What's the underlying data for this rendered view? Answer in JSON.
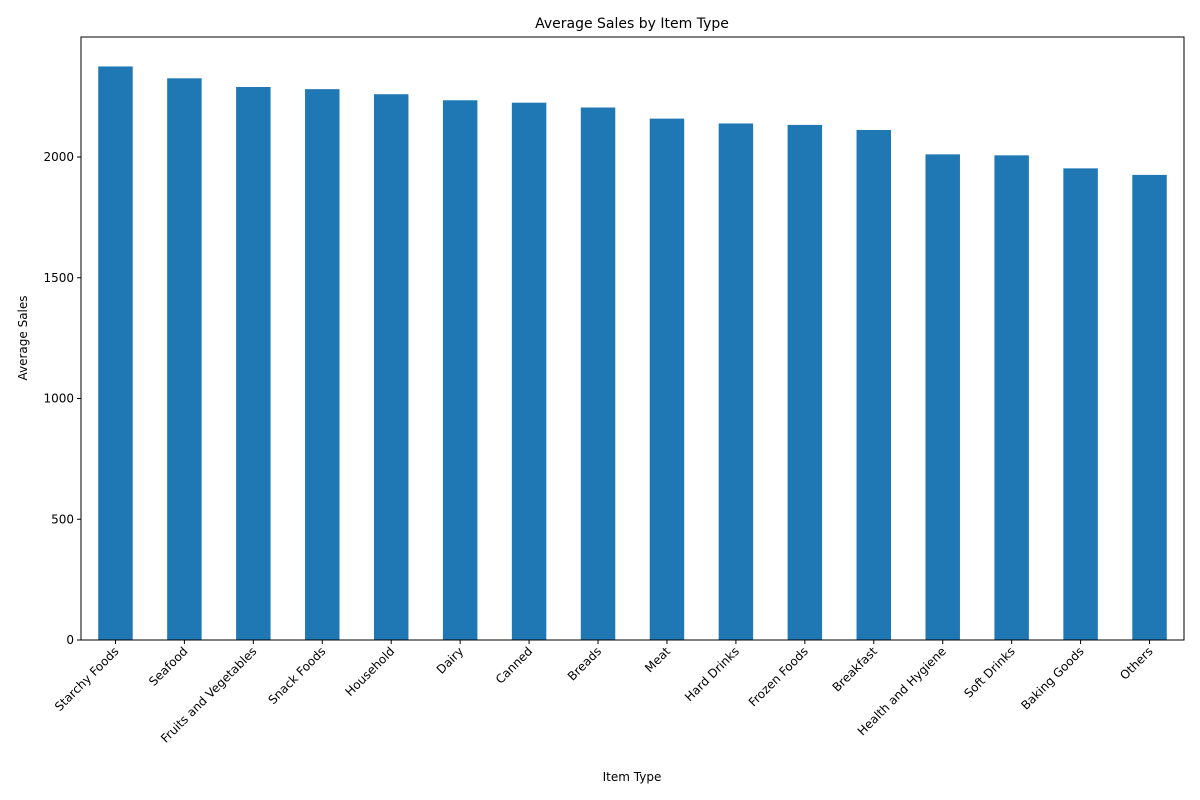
{
  "chart_data": {
    "type": "bar",
    "title": "Average Sales by Item Type",
    "xlabel": "Item Type",
    "ylabel": "Average Sales",
    "categories": [
      "Starchy Foods",
      "Seafood",
      "Fruits and Vegetables",
      "Snack Foods",
      "Household",
      "Dairy",
      "Canned",
      "Breads",
      "Meat",
      "Hard Drinks",
      "Frozen Foods",
      "Breakfast",
      "Health and Hygiene",
      "Soft Drinks",
      "Baking Goods",
      "Others"
    ],
    "values": [
      2375,
      2326,
      2290,
      2281,
      2260,
      2235,
      2225,
      2205,
      2159,
      2139,
      2133,
      2112,
      2011,
      2007,
      1953,
      1926
    ],
    "ylim": [
      0,
      2497
    ],
    "yticks": [
      0,
      500,
      1000,
      1500,
      2000
    ],
    "grid": false,
    "legend": "none",
    "bar_color": "#1f77b4"
  }
}
